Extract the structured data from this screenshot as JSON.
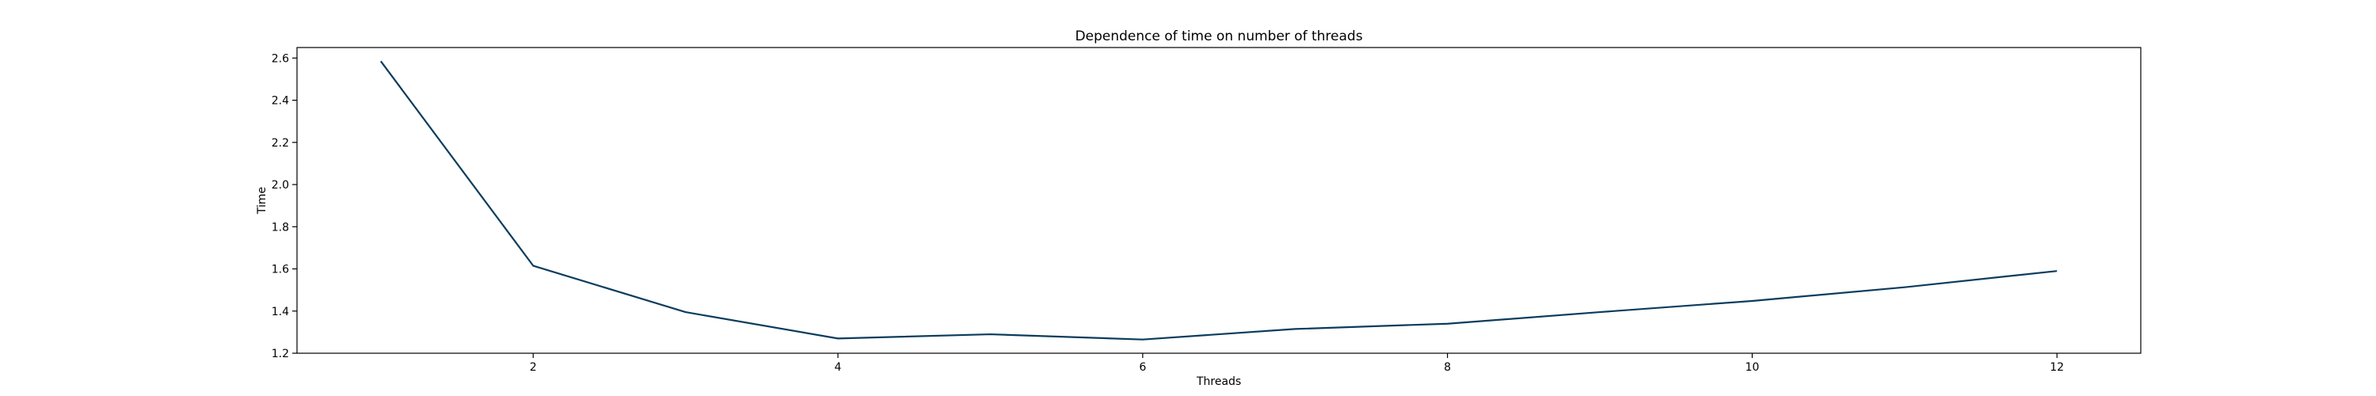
{
  "chart_data": {
    "type": "line",
    "title": "Dependence of time on number of threads",
    "xlabel": "Threads",
    "ylabel": "Time",
    "xlim": [
      0.45,
      12.55
    ],
    "ylim": [
      1.2,
      2.65
    ],
    "xticks": [
      2,
      4,
      6,
      8,
      10,
      12
    ],
    "yticks": [
      1.2,
      1.4,
      1.6,
      1.8,
      2.0,
      2.2,
      2.4,
      2.6
    ],
    "grid": false,
    "x": [
      1,
      2,
      3,
      4,
      5,
      6,
      7,
      8,
      9,
      10,
      11,
      12
    ],
    "series": [
      {
        "color": "#0b3c5d",
        "values": [
          2.585,
          1.615,
          1.395,
          1.27,
          1.29,
          1.265,
          1.315,
          1.34,
          1.395,
          1.448,
          1.513,
          1.59
        ]
      }
    ]
  }
}
